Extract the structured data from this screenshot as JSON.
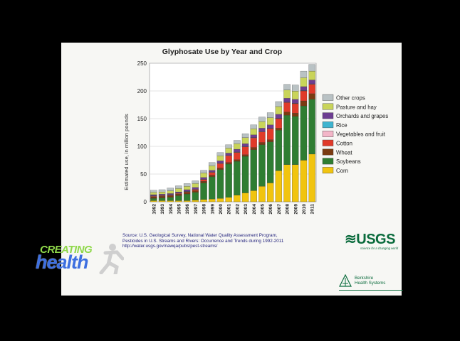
{
  "overlay_logo": {
    "line1": "CREATING",
    "line2": "health"
  },
  "source_lines": [
    "Source: U.S. Geological Survey, National Water Quality Assessment Program,",
    "Pesticides in U.S. Streams and Rivers: Occurrence and Trends during 1992-2011",
    "http://water.usgs.gov/nawqa/pubs/pest-streams/"
  ],
  "usgs_logo": {
    "word": "≋USGS",
    "tagline": "science for a changing world"
  },
  "bhs_logo": {
    "line1": "Berkshire",
    "line2": "Health Systems"
  },
  "colors": {
    "Corn": "#f1c40f",
    "Soybeans": "#2f7d32",
    "Wheat": "#7a3b12",
    "Cotton": "#e03a2a",
    "Vegetables and fruit": "#f3b6c8",
    "Rice": "#3fb4cf",
    "Orchards and grapes": "#6d3d91",
    "Pasture and hay": "#c9d45a",
    "Other crops": "#b9c2c4"
  },
  "chart_data": {
    "type": "bar",
    "stacked": true,
    "title": "Glyphosate Use by Year and Crop",
    "ylabel": "Estimated use, in million pounds",
    "xlabel": "",
    "ylim": [
      0,
      250
    ],
    "yticks": [
      0,
      50,
      100,
      150,
      200,
      250
    ],
    "grid": true,
    "legend_position": "right",
    "categories": [
      "1992",
      "1993",
      "1994",
      "1995",
      "1996",
      "1997",
      "1998",
      "1999",
      "2000",
      "2001",
      "2002",
      "2003",
      "2004",
      "2005",
      "2006",
      "2007",
      "2008",
      "2009",
      "2010",
      "2011"
    ],
    "series": [
      {
        "name": "Corn",
        "values": [
          2,
          2,
          2,
          2,
          2,
          3,
          4,
          5,
          6,
          8,
          12,
          16,
          20,
          28,
          34,
          56,
          67,
          67,
          75,
          86
        ]
      },
      {
        "name": "Soybeans",
        "values": [
          4,
          5,
          6,
          9,
          12,
          14,
          30,
          40,
          52,
          60,
          61,
          66,
          74,
          75,
          74,
          73,
          89,
          87,
          98,
          99
        ]
      },
      {
        "name": "Wheat",
        "values": [
          3,
          3,
          3,
          3,
          3,
          3,
          3,
          3,
          3,
          3,
          3,
          3,
          4,
          4,
          4,
          4,
          6,
          6,
          9,
          10
        ]
      },
      {
        "name": "Cotton",
        "values": [
          1,
          1,
          1,
          1,
          1,
          2,
          3,
          5,
          8,
          12,
          13,
          14,
          17,
          19,
          20,
          17,
          17,
          17,
          18,
          17
        ]
      },
      {
        "name": "Vegetables and fruit",
        "values": [
          0.5,
          0.5,
          0.5,
          0.5,
          0.5,
          0.5,
          0.5,
          0.5,
          0.5,
          0.5,
          0.5,
          0.5,
          0.5,
          0.5,
          0.5,
          0.5,
          0.5,
          0.5,
          0.5,
          0.5
        ]
      },
      {
        "name": "Rice",
        "values": [
          0.3,
          0.3,
          0.3,
          0.3,
          0.3,
          0.3,
          0.3,
          0.3,
          0.3,
          0.3,
          0.3,
          0.3,
          0.3,
          0.3,
          0.3,
          0.3,
          0.3,
          0.3,
          0.3,
          0.3
        ]
      },
      {
        "name": "Orchards and grapes",
        "values": [
          2,
          2,
          2,
          2,
          3,
          3,
          3,
          3,
          4,
          4,
          5,
          5,
          5,
          6,
          6,
          7,
          7,
          7,
          7,
          7
        ]
      },
      {
        "name": "Pasture and hay",
        "values": [
          4,
          4,
          5,
          6,
          6,
          7,
          8,
          8,
          9,
          9,
          10,
          11,
          11,
          12,
          13,
          14,
          15,
          15,
          16,
          16
        ]
      },
      {
        "name": "Other crops",
        "values": [
          4,
          4,
          5,
          5,
          5,
          5,
          5,
          6,
          6,
          6,
          6,
          7,
          7,
          8,
          9,
          9,
          10,
          11,
          12,
          12
        ]
      }
    ],
    "legend_order": [
      "Other crops",
      "Pasture and hay",
      "Orchards and grapes",
      "Rice",
      "Vegetables and fruit",
      "Cotton",
      "Wheat",
      "Soybeans",
      "Corn"
    ]
  }
}
